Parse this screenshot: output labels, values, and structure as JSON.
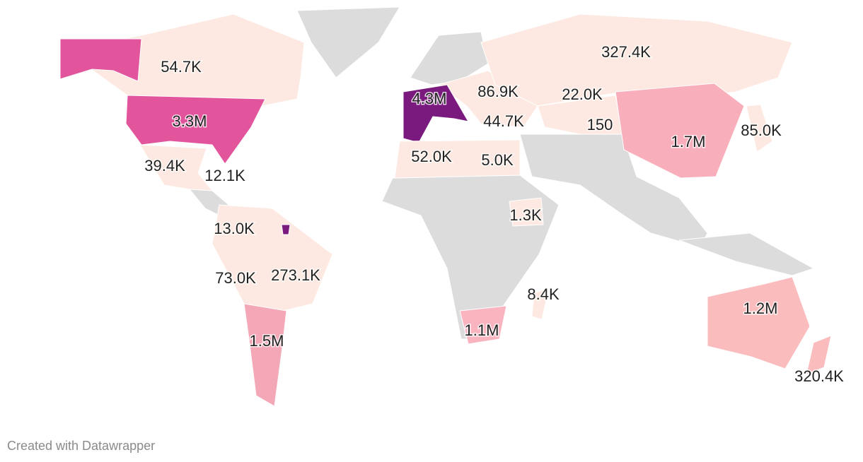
{
  "labels": [
    "54.7K",
    "3.3M",
    "39.4K",
    "12.1K",
    "13.0K",
    "73.0K",
    "273.1K",
    "1.5M",
    "4.3M",
    "86.9K",
    "22.0K",
    "327.4K",
    "44.7K",
    "150",
    "52.0K",
    "5.0K",
    "1.3K",
    "8.4K",
    "1.1M",
    "1.7M",
    "85.0K",
    "1.2M",
    "320.4K"
  ],
  "footer": "Created with Datawrapper"
}
